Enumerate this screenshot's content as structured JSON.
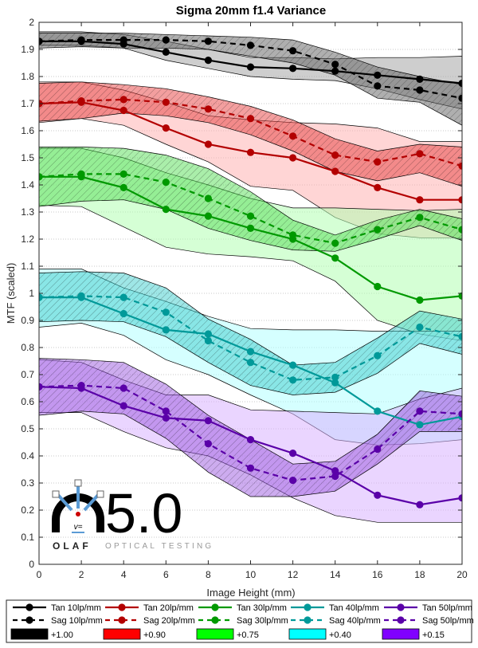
{
  "chart_data": {
    "type": "line",
    "title": "Sigma 20mm f1.4 Variance",
    "xlabel": "Image Height (mm)",
    "ylabel": "MTF (scaled)",
    "xlim": [
      0,
      20
    ],
    "ylim": [
      0,
      2
    ],
    "x_ticks": [
      "0",
      "2",
      "4",
      "6",
      "8",
      "10",
      "12",
      "14",
      "16",
      "18",
      "20"
    ],
    "y_ticks": [
      "0",
      "0.1",
      "0.2",
      "0.3",
      "0.4",
      "0.5",
      "0.6",
      "0.7",
      "0.8",
      "0.9",
      "1",
      "1.1",
      "1.2",
      "1.3",
      "1.4",
      "1.5",
      "1.6",
      "1.7",
      "1.8",
      "1.9",
      "2"
    ],
    "grid": "horizontal-dotted",
    "legend_position": "bottom",
    "x": [
      0,
      2,
      4,
      6,
      8,
      10,
      12,
      14,
      16,
      18,
      20
    ],
    "series": [
      {
        "name": "Tan 10lp/mm",
        "color": "#000000",
        "style": "solid",
        "values": [
          1.93,
          1.93,
          1.92,
          1.89,
          1.86,
          1.835,
          1.83,
          1.82,
          1.805,
          1.79,
          1.775
        ]
      },
      {
        "name": "Sag 10lp/mm",
        "color": "#000000",
        "style": "dashed",
        "values": [
          1.93,
          1.935,
          1.935,
          1.935,
          1.93,
          1.915,
          1.895,
          1.845,
          1.765,
          1.75,
          1.72
        ]
      },
      {
        "name": "Tan 20lp/mm",
        "color": "#b30000",
        "style": "solid",
        "values": [
          1.7,
          1.705,
          1.675,
          1.61,
          1.55,
          1.52,
          1.5,
          1.45,
          1.39,
          1.345,
          1.345
        ]
      },
      {
        "name": "Sag 20lp/mm",
        "color": "#b30000",
        "style": "dashed",
        "values": [
          1.7,
          1.71,
          1.715,
          1.705,
          1.68,
          1.645,
          1.58,
          1.51,
          1.485,
          1.515,
          1.47
        ]
      },
      {
        "name": "Tan 30lp/mm",
        "color": "#009900",
        "style": "solid",
        "values": [
          1.43,
          1.43,
          1.39,
          1.31,
          1.285,
          1.24,
          1.2,
          1.13,
          1.025,
          0.975,
          0.99
        ]
      },
      {
        "name": "Sag 30lp/mm",
        "color": "#009900",
        "style": "dashed",
        "values": [
          1.43,
          1.44,
          1.44,
          1.41,
          1.35,
          1.285,
          1.215,
          1.185,
          1.235,
          1.28,
          1.235
        ]
      },
      {
        "name": "Tan 40lp/mm",
        "color": "#009999",
        "style": "solid",
        "values": [
          0.985,
          0.985,
          0.925,
          0.865,
          0.85,
          0.785,
          0.735,
          0.67,
          0.565,
          0.515,
          0.545
        ]
      },
      {
        "name": "Sag 40lp/mm",
        "color": "#009999",
        "style": "dashed",
        "values": [
          0.985,
          0.99,
          0.985,
          0.93,
          0.825,
          0.745,
          0.68,
          0.69,
          0.77,
          0.875,
          0.84
        ]
      },
      {
        "name": "Tan 50lp/mm",
        "color": "#5a00a8",
        "style": "solid",
        "values": [
          0.655,
          0.65,
          0.585,
          0.54,
          0.53,
          0.46,
          0.41,
          0.345,
          0.255,
          0.22,
          0.245
        ]
      },
      {
        "name": "Sag 50lp/mm",
        "color": "#5a00a8",
        "style": "dashed",
        "values": [
          0.655,
          0.66,
          0.65,
          0.565,
          0.445,
          0.355,
          0.31,
          0.325,
          0.425,
          0.565,
          0.555
        ]
      }
    ],
    "bands": [
      {
        "of": "Tan 10lp/mm",
        "fill": "#a6a6a6",
        "hatched": false,
        "upper": [
          1.965,
          1.965,
          1.955,
          1.93,
          1.9,
          1.87,
          1.87,
          1.865,
          1.87,
          1.87,
          1.875
        ],
        "lower": [
          1.915,
          1.915,
          1.905,
          1.86,
          1.83,
          1.8,
          1.79,
          1.785,
          1.755,
          1.715,
          1.68
        ]
      },
      {
        "of": "Sag 10lp/mm",
        "fill": "#606060",
        "hatched": true,
        "upper": [
          1.96,
          1.96,
          1.96,
          1.955,
          1.95,
          1.945,
          1.935,
          1.89,
          1.835,
          1.8,
          1.77
        ],
        "lower": [
          1.905,
          1.91,
          1.905,
          1.905,
          1.9,
          1.875,
          1.85,
          1.805,
          1.72,
          1.705,
          1.62
        ]
      },
      {
        "of": "Tan 20lp/mm",
        "fill": "#ffb3b3",
        "hatched": false,
        "upper": [
          1.78,
          1.78,
          1.75,
          1.705,
          1.655,
          1.64,
          1.63,
          1.625,
          1.61,
          1.56,
          1.56
        ],
        "lower": [
          1.63,
          1.645,
          1.62,
          1.55,
          1.485,
          1.395,
          1.38,
          1.28,
          1.22,
          1.205,
          1.205
        ]
      },
      {
        "of": "Sag 20lp/mm",
        "fill": "#e84040",
        "hatched": true,
        "upper": [
          1.775,
          1.78,
          1.77,
          1.755,
          1.725,
          1.69,
          1.64,
          1.57,
          1.525,
          1.55,
          1.54
        ],
        "lower": [
          1.635,
          1.645,
          1.665,
          1.655,
          1.63,
          1.585,
          1.525,
          1.45,
          1.415,
          1.445,
          1.395
        ]
      },
      {
        "of": "Tan 30lp/mm",
        "fill": "#b3ffb3",
        "hatched": false,
        "upper": [
          1.535,
          1.535,
          1.5,
          1.445,
          1.4,
          1.35,
          1.315,
          1.315,
          1.31,
          1.305,
          1.31
        ],
        "lower": [
          1.325,
          1.32,
          1.245,
          1.17,
          1.145,
          1.135,
          1.12,
          1.045,
          0.9,
          0.85,
          0.825
        ]
      },
      {
        "of": "Sag 30lp/mm",
        "fill": "#55dd55",
        "hatched": true,
        "upper": [
          1.54,
          1.54,
          1.535,
          1.51,
          1.46,
          1.375,
          1.27,
          1.215,
          1.27,
          1.31,
          1.275
        ]
      },
      {
        "of": "Tan 40lp/mm",
        "fill": "#b3ffff",
        "hatched": false,
        "upper": [
          1.09,
          1.09,
          1.02,
          0.97,
          0.915,
          0.87,
          0.865,
          0.865,
          0.86,
          0.86,
          0.86
        ],
        "lower": [
          0.875,
          0.89,
          0.845,
          0.755,
          0.7,
          0.625,
          0.555,
          0.46,
          0.44,
          0.445,
          0.46
        ]
      },
      {
        "of": "Sag 40lp/mm",
        "fill": "#3ecece",
        "hatched": true,
        "upper": [
          1.075,
          1.08,
          1.075,
          1.02,
          0.905,
          0.83,
          0.735,
          0.745,
          0.835,
          0.935,
          0.905
        ]
      },
      {
        "of": "Tan 50lp/mm",
        "fill": "#d9b3ff",
        "hatched": false,
        "upper": [
          0.755,
          0.745,
          0.68,
          0.625,
          0.625,
          0.57,
          0.565,
          0.56,
          0.555,
          0.61,
          0.65
        ],
        "lower": [
          0.56,
          0.56,
          0.49,
          0.43,
          0.4,
          0.33,
          0.245,
          0.18,
          0.155,
          0.155,
          0.155
        ]
      },
      {
        "of": "Sag 50lp/mm",
        "fill": "#9b59e0",
        "hatched": true,
        "upper": [
          0.76,
          0.755,
          0.745,
          0.665,
          0.55,
          0.46,
          0.37,
          0.38,
          0.48,
          0.64,
          0.62
        ]
      }
    ],
    "legend": {
      "lines": [
        "Tan 10lp/mm",
        "Tan 20lp/mm",
        "Tan 30lp/mm",
        "Tan 40lp/mm",
        "Tan 50lp/mm",
        "Sag 10lp/mm",
        "Sag 20lp/mm",
        "Sag 30lp/mm",
        "Sag 40lp/mm",
        "Sag 50lp/mm"
      ],
      "offsets": [
        {
          "label": "+1.00",
          "color": "#000000"
        },
        {
          "label": "+0.90",
          "color": "#ff0000"
        },
        {
          "label": "+0.75",
          "color": "#00ff00"
        },
        {
          "label": "+0.40",
          "color": "#00ffff"
        },
        {
          "label": "+0.15",
          "color": "#8000ff"
        }
      ]
    }
  },
  "logo": {
    "version": "5.0",
    "brand": "OLAF",
    "tagline": "OPTICAL TESTING",
    "v_mark": "v="
  }
}
